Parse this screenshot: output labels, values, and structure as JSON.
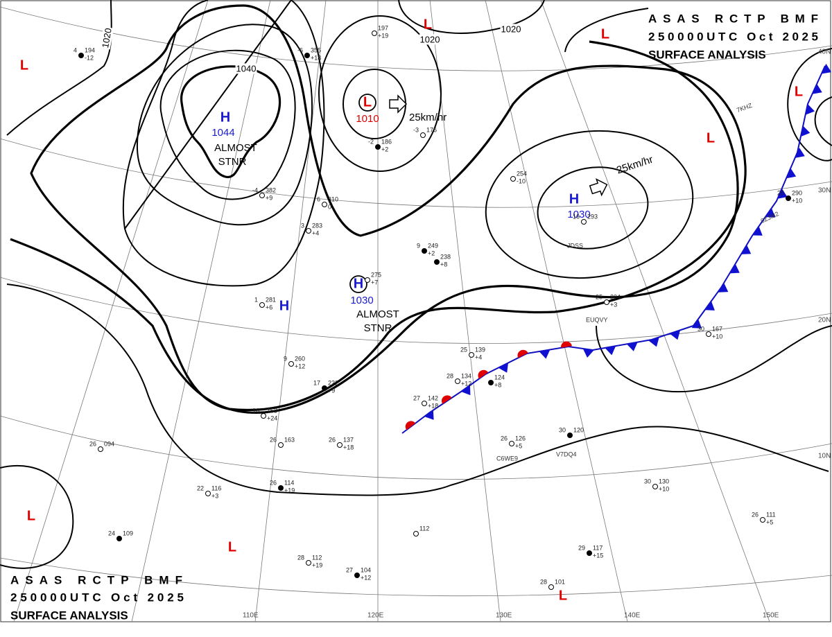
{
  "header": {
    "top": {
      "line1": "ASAS RCTP BMF",
      "line2": "250000UTC Oct 2025",
      "line3": "SURFACE ANALYSIS"
    },
    "bottom": {
      "line1": "ASAS RCTP BMF",
      "line2": "250000UTC Oct 2025",
      "line3": "SURFACE ANALYSIS"
    }
  },
  "pressure_systems": [
    {
      "symbol": "H",
      "pressure": "1044",
      "note": [
        "ALMOST",
        "STNR"
      ]
    },
    {
      "symbol": "L",
      "pressure": "1010"
    },
    {
      "symbol": "H",
      "pressure": "1030",
      "note": [
        "ALMOST",
        "STNR"
      ]
    },
    {
      "symbol": "H",
      "pressure": "1030"
    },
    {
      "symbol": "H"
    },
    {
      "symbol": "L"
    },
    {
      "symbol": "L"
    },
    {
      "symbol": "L"
    },
    {
      "symbol": "L"
    },
    {
      "symbol": "L"
    },
    {
      "symbol": "L"
    },
    {
      "symbol": "L"
    },
    {
      "symbol": "L"
    }
  ],
  "isobar_labels": [
    "1020",
    "1020",
    "1020",
    "1040"
  ],
  "motions": [
    "25km/hr",
    "25km/hr"
  ],
  "grid_labels": {
    "longitude": [
      "110E",
      "120E",
      "130E",
      "140E",
      "150E"
    ],
    "latitude": [
      "40N",
      "30N",
      "20N",
      "10N"
    ]
  },
  "ship_ids": [
    "7KHZ",
    "0ZJM2",
    "JDSS",
    "EUQVY",
    "C6WE9",
    "V7DQ4"
  ],
  "stations": [
    {
      "temp": "-6",
      "pressure": "355",
      "tendency": "+18"
    },
    {
      "pressure": "197",
      "tendency": "+19"
    },
    {
      "temp": "-3",
      "pressure": "176"
    },
    {
      "temp": "-2",
      "pressure": "186",
      "tendency": "+2"
    },
    {
      "temp": "6",
      "pressure": "310",
      "tendency": "0"
    },
    {
      "temp": "3",
      "pressure": "283",
      "tendency": "+4"
    },
    {
      "temp": "9",
      "pressure": "249",
      "tendency": "+2"
    },
    {
      "pressure": "275",
      "tendency": "+7"
    },
    {
      "temp": "9",
      "pressure": "260",
      "tendency": "+12"
    },
    {
      "temp": "17",
      "pressure": "222",
      "tendency": "+9"
    },
    {
      "temp": "27",
      "pressure": "142",
      "tendency": "+18"
    },
    {
      "temp": "28",
      "pressure": "134",
      "tendency": "+12"
    },
    {
      "pressure": "124",
      "tendency": "+8"
    },
    {
      "temp": "25",
      "pressure": "139",
      "tendency": "+4"
    },
    {
      "temp": "26",
      "pressure": "126",
      "tendency": "+5"
    },
    {
      "temp": "30",
      "pressure": "120"
    },
    {
      "temp": "30",
      "pressure": "130",
      "tendency": "+10"
    },
    {
      "temp": "26",
      "pressure": "111",
      "tendency": "+5"
    },
    {
      "temp": "29",
      "pressure": "117",
      "tendency": "+15"
    },
    {
      "temp": "28",
      "pressure": "101"
    },
    {
      "pressure": "112"
    },
    {
      "temp": "27",
      "pressure": "104",
      "tendency": "+12"
    },
    {
      "temp": "28",
      "pressure": "112",
      "tendency": "+19"
    },
    {
      "temp": "22",
      "pressure": "116",
      "tendency": "+3"
    },
    {
      "temp": "24",
      "pressure": "109"
    },
    {
      "temp": "26",
      "pressure": "094"
    },
    {
      "temp": "26",
      "pressure": "137",
      "tendency": "+18"
    },
    {
      "temp": "26",
      "pressure": "114",
      "tendency": "+19"
    },
    {
      "temp": "16",
      "pressure": "153",
      "tendency": "+24"
    },
    {
      "temp": "26",
      "pressure": "163"
    },
    {
      "pressure": "238",
      "tendency": "+8"
    },
    {
      "pressure": "254",
      "tendency": "-10"
    },
    {
      "temp": "16",
      "pressure": "293"
    },
    {
      "temp": "25",
      "pressure": "290",
      "tendency": "+10"
    },
    {
      "temp": "30",
      "pressure": "167",
      "tendency": "+10"
    },
    {
      "temp": "25",
      "pressure": "204",
      "tendency": "+3"
    },
    {
      "temp": "4",
      "pressure": "194",
      "tendency": "-12"
    },
    {
      "temp": "-4",
      "pressure": "382",
      "tendency": "+9"
    },
    {
      "temp": "1",
      "pressure": "281",
      "tendency": "+6"
    }
  ]
}
